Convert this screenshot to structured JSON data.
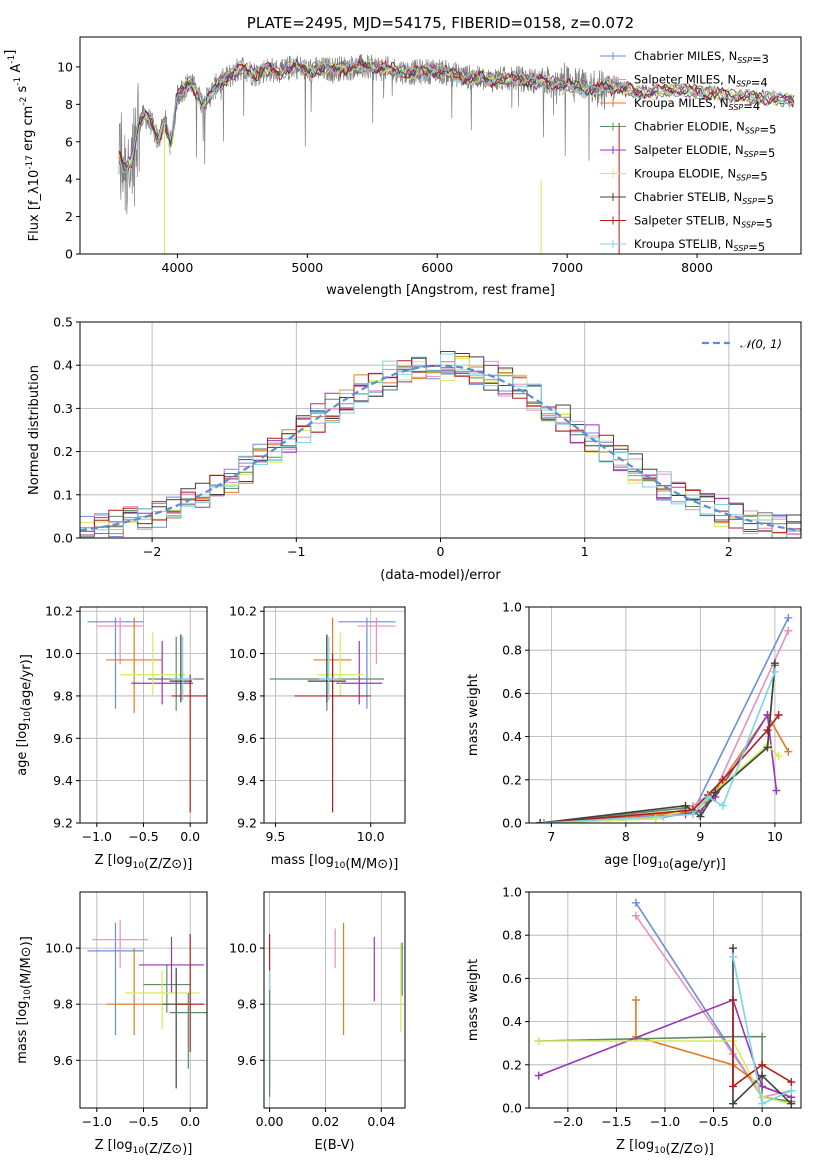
{
  "chart_data": [
    {
      "id": "spectrum",
      "type": "line",
      "title": "PLATE=2495, MJD=54175, FIBERID=0158, z=0.072",
      "xlabel": "wavelength [Angstrom, rest frame]",
      "ylabel": "Flux [f_λ10^{-17} erg cm^{-2} s^{-1} A^{-1}]",
      "xlim": [
        3250,
        8800
      ],
      "ylim": [
        0,
        11.6
      ],
      "xticks": [
        "4000",
        "5000",
        "6000",
        "7000",
        "8000"
      ],
      "yticks": [
        "0",
        "2",
        "4",
        "6",
        "8",
        "10"
      ],
      "grid": false,
      "legend_position": "top-right",
      "series": [
        {
          "name": "Chabrier MILES, N_SSP=3",
          "color": "#6a8ee0"
        },
        {
          "name": "Salpeter MILES, N_SSP=4",
          "color": "#e98fbf"
        },
        {
          "name": "Kroupa MILES, N_SSP=4",
          "color": "#e07c22"
        },
        {
          "name": "Chabrier ELODIE, N_SSP=5",
          "color": "#5e8a64"
        },
        {
          "name": "Salpeter ELODIE, N_SSP=5",
          "color": "#9b35b8"
        },
        {
          "name": "Kroupa ELODIE, N_SSP=5",
          "color": "#d4ec5a"
        },
        {
          "name": "Chabrier STELIB, N_SSP=5",
          "color": "#404040"
        },
        {
          "name": "Salpeter STELIB, N_SSP=5",
          "color": "#b01d1d"
        },
        {
          "name": "Kroupa STELIB, N_SSP=5",
          "color": "#7ad6e0"
        }
      ],
      "data_series_color": "#808080",
      "continuum": {
        "x": [
          3550,
          3600,
          3650,
          3700,
          3750,
          3800,
          3850,
          3900,
          3950,
          4000,
          4100,
          4200,
          4300,
          4400,
          4500,
          4600,
          4700,
          4800,
          4900,
          5000,
          5200,
          5400,
          5600,
          5800,
          6000,
          6200,
          6400,
          6600,
          6800,
          7000,
          7200,
          7400,
          7600,
          7800,
          8000,
          8200,
          8400,
          8600,
          8800
        ],
        "y": [
          5.2,
          4.6,
          5.0,
          7.0,
          7.4,
          7.0,
          6.0,
          7.2,
          5.8,
          8.5,
          9.2,
          8.0,
          9.0,
          9.5,
          10.0,
          9.6,
          9.9,
          9.7,
          10.1,
          9.8,
          9.9,
          10.0,
          9.9,
          9.7,
          9.8,
          9.5,
          9.3,
          9.4,
          9.2,
          9.0,
          8.8,
          8.9,
          8.6,
          8.8,
          8.7,
          8.5,
          8.4,
          8.3,
          8.2
        ]
      }
    },
    {
      "id": "residuals",
      "type": "line",
      "xlabel": "(data-model)/error",
      "ylabel": "Normed distribution",
      "xlim": [
        -2.5,
        2.5
      ],
      "ylim": [
        0,
        0.5
      ],
      "xticks": [
        "−2",
        "−1",
        "0",
        "1",
        "2"
      ],
      "yticks": [
        "0.0",
        "0.1",
        "0.2",
        "0.3",
        "0.4",
        "0.5"
      ],
      "grid": true,
      "legend_position": "top-right",
      "reference": {
        "name": "𝒩(0, 1)",
        "mean": 0,
        "sigma": 1,
        "color": "#5b8ed6"
      },
      "bin_width": 0.1,
      "bin_start": -2.5
    },
    {
      "id": "age-vs-Z",
      "type": "scatter",
      "xlabel": "Z [log10(Z/Z⊙)]",
      "ylabel": "age  [log10(age/yr)]",
      "xlim": [
        -1.18,
        0.18
      ],
      "ylim": [
        9.2,
        10.22
      ],
      "xticks": [
        "−1.0",
        "−0.5",
        "0.0"
      ],
      "yticks": [
        "9.2",
        "9.4",
        "9.6",
        "9.8",
        "10.0",
        "10.2"
      ],
      "grid": true,
      "points": [
        {
          "x": -0.8,
          "y": 10.15,
          "xerr": 0.3,
          "yerr": [
            0.41,
            0.02
          ],
          "color": "#6a8ee0"
        },
        {
          "x": -0.75,
          "y": 10.13,
          "xerr": 0.25,
          "yerr": [
            0.18,
            0.04
          ],
          "color": "#e98fbf"
        },
        {
          "x": -0.6,
          "y": 9.97,
          "xerr": 0.3,
          "yerr": [
            0.25,
            0.2
          ],
          "color": "#e07c22"
        },
        {
          "x": -0.15,
          "y": 9.88,
          "xerr": 0.3,
          "yerr": [
            0.15,
            0.2
          ],
          "color": "#5e8a64"
        },
        {
          "x": -0.3,
          "y": 9.86,
          "xerr": 0.33,
          "yerr": [
            0.1,
            0.2
          ],
          "color": "#9b35b8"
        },
        {
          "x": -0.4,
          "y": 9.9,
          "xerr": 0.35,
          "yerr": [
            0.1,
            0.2
          ],
          "color": "#d4ec5a"
        },
        {
          "x": -0.1,
          "y": 9.87,
          "xerr": 0.12,
          "yerr": [
            0.1,
            0.22
          ],
          "color": "#404040"
        },
        {
          "x": 0.0,
          "y": 9.8,
          "xerr": 0.2,
          "yerr": [
            0.55,
            0.1
          ],
          "color": "#b01d1d"
        },
        {
          "x": -0.08,
          "y": 9.88,
          "xerr": 0.12,
          "yerr": [
            0.1,
            0.2
          ],
          "color": "#7ad6e0"
        }
      ]
    },
    {
      "id": "age-vs-mass",
      "type": "scatter",
      "xlabel": "mass [log10(M/M⊙)]",
      "ylabel": "",
      "xlim": [
        9.44,
        10.18
      ],
      "ylim": [
        9.2,
        10.22
      ],
      "xticks": [
        "9.5",
        "10.0"
      ],
      "yticks": [
        "9.2",
        "9.4",
        "9.6",
        "9.8",
        "10.0",
        "10.2"
      ],
      "grid": true,
      "points": [
        {
          "x": 9.98,
          "y": 10.15,
          "xerr": 0.15,
          "yerr": [
            0.41,
            0.02
          ],
          "color": "#6a8ee0"
        },
        {
          "x": 10.03,
          "y": 10.13,
          "xerr": 0.1,
          "yerr": [
            0.18,
            0.04
          ],
          "color": "#e98fbf"
        },
        {
          "x": 9.8,
          "y": 9.97,
          "xerr": 0.1,
          "yerr": [
            0.25,
            0.2
          ],
          "color": "#e07c22"
        },
        {
          "x": 9.77,
          "y": 9.88,
          "xerr": 0.3,
          "yerr": [
            0.15,
            0.2
          ],
          "color": "#5e8a64"
        },
        {
          "x": 9.94,
          "y": 9.86,
          "xerr": 0.12,
          "yerr": [
            0.1,
            0.2
          ],
          "color": "#9b35b8"
        },
        {
          "x": 9.84,
          "y": 9.9,
          "xerr": 0.12,
          "yerr": [
            0.1,
            0.2
          ],
          "color": "#d4ec5a"
        },
        {
          "x": 9.77,
          "y": 9.87,
          "xerr": 0.1,
          "yerr": [
            0.1,
            0.22
          ],
          "color": "#404040"
        },
        {
          "x": 9.8,
          "y": 9.8,
          "xerr": 0.2,
          "yerr": [
            0.55,
            0.2
          ],
          "color": "#b01d1d"
        },
        {
          "x": 9.78,
          "y": 9.88,
          "xerr": 0.05,
          "yerr": [
            0.1,
            0.2
          ],
          "color": "#7ad6e0"
        }
      ]
    },
    {
      "id": "weight-vs-age",
      "type": "line",
      "xlabel": "age  [log10(age/yr)]",
      "ylabel": "mass weight",
      "xlim": [
        6.7,
        10.35
      ],
      "ylim": [
        0,
        1.0
      ],
      "xticks": [
        "7",
        "8",
        "9",
        "10"
      ],
      "yticks": [
        "0.0",
        "0.2",
        "0.4",
        "0.6",
        "0.8",
        "1.0"
      ],
      "grid": true,
      "series": [
        {
          "color": "#6a8ee0",
          "x": [
            6.85,
            8.4,
            8.9,
            10.18
          ],
          "y": [
            0.0,
            0.02,
            0.05,
            0.95
          ]
        },
        {
          "color": "#e98fbf",
          "x": [
            6.9,
            8.5,
            8.9,
            9.2,
            10.18
          ],
          "y": [
            0.0,
            0.03,
            0.08,
            0.15,
            0.89
          ]
        },
        {
          "color": "#e07c22",
          "x": [
            6.9,
            8.8,
            9.1,
            9.3,
            9.9,
            10.18
          ],
          "y": [
            0.0,
            0.05,
            0.1,
            0.2,
            0.5,
            0.33
          ]
        },
        {
          "color": "#5e8a64",
          "x": [
            6.85,
            8.8,
            9.0,
            9.2,
            9.9,
            10.0
          ],
          "y": [
            0.0,
            0.07,
            0.05,
            0.15,
            0.35,
            0.73
          ]
        },
        {
          "color": "#9b35b8",
          "x": [
            6.9,
            8.8,
            9.0,
            9.2,
            9.9,
            10.02
          ],
          "y": [
            0.0,
            0.04,
            0.06,
            0.12,
            0.5,
            0.15
          ]
        },
        {
          "color": "#d4ec5a",
          "x": [
            6.9,
            8.4,
            9.0,
            9.3,
            9.9,
            10.05
          ],
          "y": [
            0.0,
            0.02,
            0.08,
            0.18,
            0.36,
            0.31
          ]
        },
        {
          "color": "#404040",
          "x": [
            6.85,
            8.8,
            9.0,
            9.2,
            9.9,
            10.0
          ],
          "y": [
            0.0,
            0.08,
            0.03,
            0.14,
            0.35,
            0.74
          ]
        },
        {
          "color": "#b01d1d",
          "x": [
            6.9,
            8.9,
            9.1,
            9.3,
            9.9,
            10.05
          ],
          "y": [
            0.0,
            0.06,
            0.13,
            0.2,
            0.43,
            0.5
          ]
        },
        {
          "color": "#7ad6e0",
          "x": [
            6.9,
            8.9,
            9.1,
            9.3,
            10.0
          ],
          "y": [
            0.0,
            0.04,
            0.12,
            0.08,
            0.7
          ]
        }
      ]
    },
    {
      "id": "mass-vs-Z",
      "type": "scatter",
      "xlabel": "Z [log10(Z/Z⊙)]",
      "ylabel": "mass [log10(M/M⊙)]",
      "xlim": [
        -1.18,
        0.18
      ],
      "ylim": [
        9.43,
        10.2
      ],
      "xticks": [
        "−1.0",
        "−0.5",
        "0.0"
      ],
      "yticks": [
        "9.6",
        "9.8",
        "10.0"
      ],
      "grid": true,
      "points": [
        {
          "x": -0.8,
          "y": 9.99,
          "xerr": 0.3,
          "yerr": [
            0.3,
            0.1
          ],
          "color": "#6a8ee0"
        },
        {
          "x": -0.75,
          "y": 10.03,
          "xerr": 0.3,
          "yerr": [
            0.1,
            0.07
          ],
          "color": "#e98fbf"
        },
        {
          "x": -0.6,
          "y": 9.8,
          "xerr": 0.3,
          "yerr": [
            0.11,
            0.2
          ],
          "color": "#e07c22"
        },
        {
          "x": -0.25,
          "y": 9.87,
          "xerr": 0.25,
          "yerr": [
            0.1,
            0.07
          ],
          "color": "#5e8a64"
        },
        {
          "x": -0.2,
          "y": 9.94,
          "xerr": 0.35,
          "yerr": [
            0.1,
            0.1
          ],
          "color": "#9b35b8"
        },
        {
          "x": -0.3,
          "y": 9.84,
          "xerr": 0.4,
          "yerr": [
            0.13,
            0.08
          ],
          "color": "#d4ec5a"
        },
        {
          "x": -0.15,
          "y": 9.8,
          "xerr": 0.15,
          "yerr": [
            0.3,
            0.13
          ],
          "color": "#404040"
        },
        {
          "x": 0.0,
          "y": 9.8,
          "xerr": 0.15,
          "yerr": [
            0.17,
            0.25
          ],
          "color": "#b01d1d"
        },
        {
          "x": -0.02,
          "y": 9.77,
          "xerr": 0.2,
          "yerr": [
            0.2,
            0.07
          ],
          "color": "#5e8a64"
        }
      ]
    },
    {
      "id": "mass-vs-EBV",
      "type": "scatter",
      "xlabel": "E(B-V)",
      "ylabel": "",
      "xlim": [
        -0.002,
        0.0485
      ],
      "ylim": [
        9.43,
        10.2
      ],
      "xticks": [
        "0.00",
        "0.02",
        "0.04"
      ],
      "yticks": [
        "9.6",
        "9.8",
        "10.0"
      ],
      "grid": true,
      "points": [
        {
          "x": 0.0,
          "y": 9.8,
          "xerr": 0,
          "yerr": [
            0.3,
            0.25
          ],
          "color": "#b01d1d"
        },
        {
          "x": 0.0,
          "y": 9.77,
          "xerr": 0,
          "yerr": [
            0.3,
            0.15
          ],
          "color": "#7ad6e0"
        },
        {
          "x": 0.0,
          "y": 9.75,
          "xerr": 0,
          "yerr": [
            0.28,
            0.1
          ],
          "color": "#5e8a64"
        },
        {
          "x": 0.0235,
          "y": 10.0,
          "xerr": 0,
          "yerr": [
            0.07,
            0.07
          ],
          "color": "#e98fbf"
        },
        {
          "x": 0.0265,
          "y": 9.9,
          "xerr": 0,
          "yerr": [
            0.21,
            0.19
          ],
          "color": "#e07c22"
        },
        {
          "x": 0.0375,
          "y": 9.92,
          "xerr": 0,
          "yerr": [
            0.11,
            0.12
          ],
          "color": "#9b35b8"
        },
        {
          "x": 0.047,
          "y": 9.86,
          "xerr": 0,
          "yerr": [
            0.16,
            0.16
          ],
          "color": "#d4ec5a"
        },
        {
          "x": 0.0475,
          "y": 9.93,
          "xerr": 0,
          "yerr": [
            0.1,
            0.09
          ],
          "color": "#5e8a64"
        }
      ]
    },
    {
      "id": "weight-vs-Z",
      "type": "line",
      "xlabel": "Z [log10(Z/Z⊙)]",
      "ylabel": "mass weight",
      "xlim": [
        -2.4,
        0.4
      ],
      "ylim": [
        0,
        1.0
      ],
      "xticks": [
        "−2.0",
        "−1.5",
        "−1.0",
        "−0.5",
        "0.0"
      ],
      "yticks": [
        "0.0",
        "0.2",
        "0.4",
        "0.6",
        "0.8",
        "1.0"
      ],
      "grid": true,
      "series": [
        {
          "color": "#6a8ee0",
          "x": [
            -1.3,
            0.0,
            0.3
          ],
          "y": [
            0.95,
            0.05,
            0.03
          ]
        },
        {
          "color": "#e98fbf",
          "x": [
            -1.3,
            -0.3,
            0.0,
            0.3
          ],
          "y": [
            0.89,
            0.25,
            0.05,
            0.08
          ]
        },
        {
          "color": "#e07c22",
          "x": [
            -1.3,
            -1.3,
            -0.3,
            0.0,
            0.3
          ],
          "y": [
            0.5,
            0.33,
            0.2,
            0.1,
            0.05
          ]
        },
        {
          "color": "#5e8a64",
          "x": [
            -2.3,
            -0.3,
            0.0,
            0.0,
            0.3
          ],
          "y": [
            0.31,
            0.33,
            0.33,
            0.05,
            0.03
          ]
        },
        {
          "color": "#9b35b8",
          "x": [
            -2.3,
            -0.3,
            0.0,
            0.3
          ],
          "y": [
            0.15,
            0.5,
            0.1,
            0.05
          ]
        },
        {
          "color": "#d4ec5a",
          "x": [
            -2.3,
            -0.3,
            0.0,
            0.3
          ],
          "y": [
            0.31,
            0.31,
            0.05,
            0.02
          ]
        },
        {
          "color": "#404040",
          "x": [
            -0.3,
            -0.3,
            0.0,
            0.3
          ],
          "y": [
            0.74,
            0.02,
            0.15,
            0.02
          ]
        },
        {
          "color": "#b01d1d",
          "x": [
            -0.3,
            -0.3,
            0.0,
            0.3
          ],
          "y": [
            0.5,
            0.1,
            0.2,
            0.12
          ]
        },
        {
          "color": "#7ad6e0",
          "x": [
            -0.3,
            0.0,
            0.3
          ],
          "y": [
            0.7,
            0.02,
            0.08
          ]
        }
      ]
    }
  ]
}
